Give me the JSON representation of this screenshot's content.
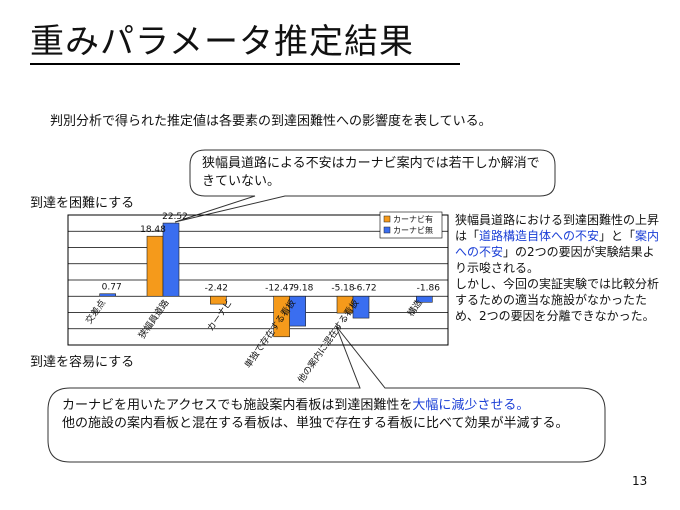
{
  "slide": {
    "title": "重みパラメータ推定結果",
    "intro": "判別分析で得られた推定値は各要素の到達困難性への影響度を表している。",
    "callout_top": "狭幅員道路による不安はカーナビ案内では若干しか解消できていない。",
    "label_up": "到達を困難にする",
    "label_down": "到達を容易にする",
    "side_text_1": "  狭幅員道路における到達困難性の上昇は「",
    "side_text_blue_1": "道路構造自体への不安",
    "side_text_2": "」と「",
    "side_text_blue_2": "案内への不安",
    "side_text_3": "」の2つの要因が実験結果より示唆される。",
    "side_text_4": "  しかし、今回の実証実験では比較分析するための適当な施設がなかったため、2つの要因を分離できなかった。",
    "callout_bottom_1": "カーナビを用いたアクセスでも施設案内看板は到達困難性を",
    "callout_bottom_blue": "大幅に減少させる。",
    "callout_bottom_2": "他の施設の案内看板と混在する看板は、単独で存在する看板に比べて効果が半減する。",
    "page_number": "13"
  },
  "colors": {
    "with_navi": "#f59a1b",
    "without_navi": "#3a6ef0",
    "text_blue": "#1b3fd6"
  },
  "chart_data": {
    "type": "bar",
    "categories": [
      "交差点",
      "狭幅員道路",
      "カーナビ",
      "単独で存在する看板",
      "他の案内に混在する看板",
      "構造"
    ],
    "series": [
      {
        "name": "カーナビ有",
        "values": [
          null,
          18.48,
          -2.42,
          -12.47,
          -5.18,
          null
        ]
      },
      {
        "name": "カーナビ無",
        "values": [
          0.77,
          22.52,
          null,
          -9.18,
          -6.72,
          -1.86
        ]
      }
    ],
    "data_labels": [
      [
        "",
        "18.48",
        "-2.42",
        "-12.47",
        "-5.18",
        ""
      ],
      [
        "0.77",
        "22.52",
        "",
        "-9.18",
        "-6.72",
        "-1.86"
      ]
    ],
    "ylim": [
      -15,
      25
    ],
    "grid": true,
    "legend": "top-right"
  }
}
